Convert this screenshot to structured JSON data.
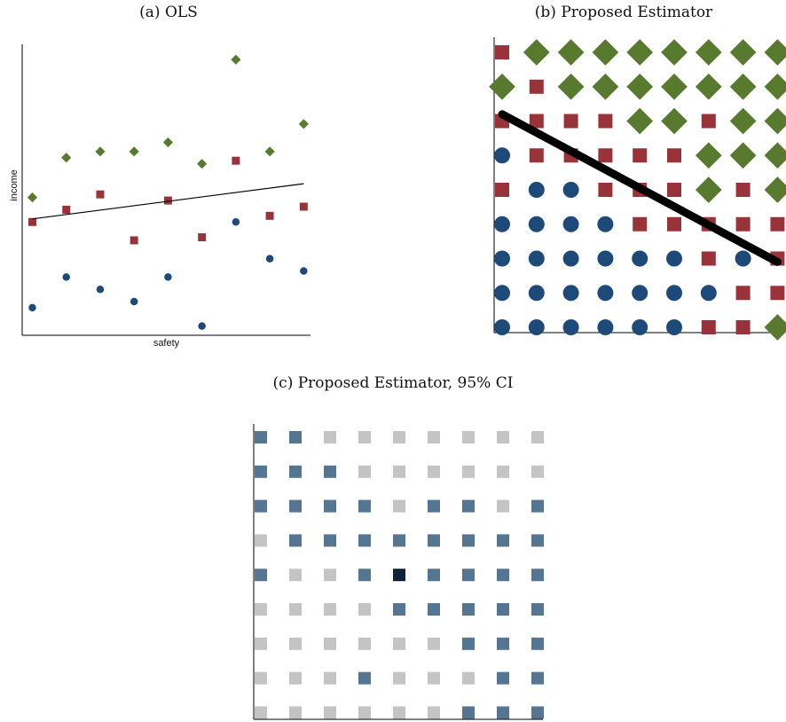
{
  "colors": {
    "low": "#1d4a78",
    "mid": "#983339",
    "high": "#577a2f",
    "sig": "#547693",
    "nonsig": "#c4c4c4",
    "center": "#0c2338",
    "line": "#000000"
  },
  "panels": {
    "a": {
      "title": "(a) OLS"
    },
    "b": {
      "title": "(b) Proposed Estimator"
    },
    "c": {
      "title": "(c) Proposed Estimator, 95% CI"
    }
  },
  "chart_data": [
    {
      "type": "scatter",
      "title": "(a) OLS",
      "xlabel": "safety",
      "ylabel": "income",
      "xlim": [
        0.7,
        9.2
      ],
      "ylim": [
        0.5,
        10.0
      ],
      "series": [
        {
          "marker": "diamond",
          "color_key": "high",
          "x": [
            1,
            2,
            3,
            4,
            5,
            6,
            7,
            8,
            9
          ],
          "y": [
            5.0,
            6.3,
            6.5,
            6.5,
            6.8,
            6.1,
            9.5,
            6.5,
            7.4
          ]
        },
        {
          "marker": "square",
          "color_key": "mid",
          "x": [
            1,
            2,
            3,
            4,
            5,
            6,
            7,
            8,
            9
          ],
          "y": [
            4.2,
            4.6,
            5.1,
            3.6,
            4.9,
            3.7,
            6.2,
            4.4,
            4.7
          ]
        },
        {
          "marker": "circle",
          "color_key": "low",
          "x": [
            1,
            2,
            3,
            4,
            5,
            6,
            7,
            8,
            9
          ],
          "y": [
            1.4,
            2.4,
            2.0,
            1.6,
            2.4,
            0.8,
            4.2,
            3.0,
            2.6
          ]
        }
      ],
      "fit_line": {
        "x": [
          1,
          9
        ],
        "y": [
          4.3,
          5.45
        ]
      }
    },
    {
      "type": "scatter",
      "title": "(b) Proposed Estimator",
      "xlim": [
        1,
        9
      ],
      "ylim": [
        1,
        9
      ],
      "grid_rows_top_to_bottom": [
        [
          "S",
          "D",
          "D",
          "D",
          "D",
          "D",
          "D",
          "D",
          "D"
        ],
        [
          "D",
          "S",
          "D",
          "D",
          "D",
          "D",
          "D",
          "D",
          "D"
        ],
        [
          "S",
          "S",
          "S",
          "S",
          "D",
          "D",
          "S",
          "D",
          "D"
        ],
        [
          "C",
          "S",
          "S",
          "S",
          "S",
          "S",
          "D",
          "D",
          "D"
        ],
        [
          "S",
          "C",
          "C",
          "S",
          "S",
          "S",
          "D",
          "S",
          "D"
        ],
        [
          "C",
          "C",
          "C",
          "C",
          "S",
          "S",
          "S",
          "S",
          "S"
        ],
        [
          "C",
          "C",
          "C",
          "C",
          "C",
          "C",
          "S",
          "C",
          "S"
        ],
        [
          "C",
          "C",
          "C",
          "C",
          "C",
          "C",
          "C",
          "S",
          "S"
        ],
        [
          "C",
          "C",
          "C",
          "C",
          "C",
          "C",
          "S",
          "S",
          "D"
        ]
      ],
      "fit_line": {
        "x": [
          1,
          9
        ],
        "y": [
          7.2,
          2.9
        ]
      }
    },
    {
      "type": "heatmap",
      "title": "(c) Proposed Estimator, 95% CI",
      "grid_rows_top_to_bottom": [
        [
          "B",
          "B",
          "G",
          "G",
          "G",
          "G",
          "G",
          "G",
          "G"
        ],
        [
          "B",
          "B",
          "B",
          "G",
          "G",
          "G",
          "G",
          "G",
          "G"
        ],
        [
          "B",
          "B",
          "B",
          "B",
          "G",
          "B",
          "B",
          "G",
          "B"
        ],
        [
          "G",
          "B",
          "B",
          "B",
          "B",
          "B",
          "B",
          "B",
          "B"
        ],
        [
          "B",
          "G",
          "G",
          "B",
          "K",
          "B",
          "B",
          "B",
          "B"
        ],
        [
          "G",
          "G",
          "G",
          "G",
          "B",
          "B",
          "B",
          "B",
          "B"
        ],
        [
          "G",
          "G",
          "G",
          "G",
          "G",
          "G",
          "B",
          "B",
          "B"
        ],
        [
          "G",
          "G",
          "G",
          "B",
          "G",
          "G",
          "G",
          "B",
          "B"
        ],
        [
          "G",
          "G",
          "G",
          "G",
          "G",
          "G",
          "B",
          "B",
          "B"
        ]
      ]
    }
  ]
}
